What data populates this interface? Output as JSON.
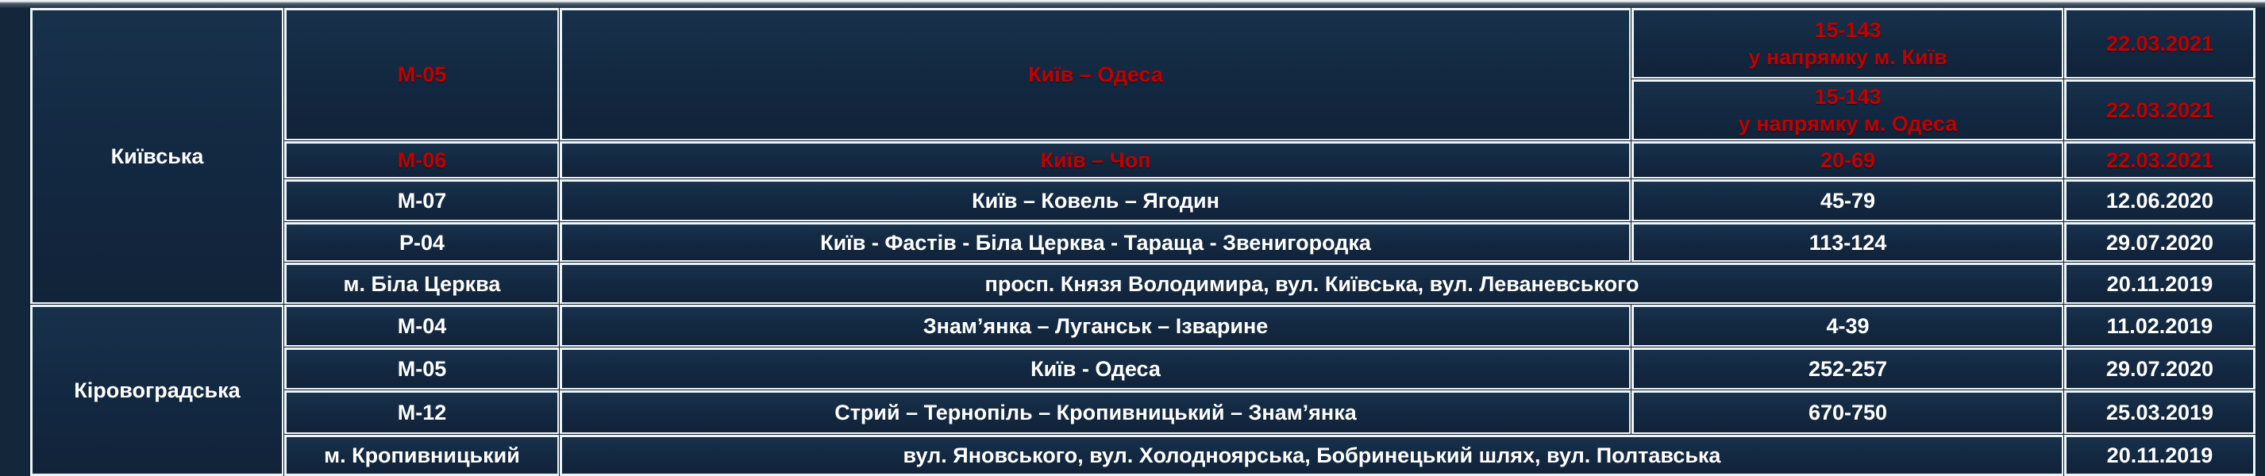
{
  "document": {
    "language": "uk",
    "description_keys": [
      "region",
      "road_code",
      "route",
      "km_range",
      "date"
    ]
  },
  "colors": {
    "cell_background": "#122740",
    "border_white": "#edf5fa",
    "text_white": "#ffffff",
    "highlight_red": "#c00000"
  },
  "table": {
    "groups": [
      {
        "region": "Київська",
        "rows": [
          {
            "code": "М-05",
            "route": "Київ – Одеса",
            "highlight": true,
            "directions": [
              {
                "km": "15-143\nу напрямку м. Київ",
                "date": "22.03.2021"
              },
              {
                "km": "15-143\nу напрямку м. Одеса",
                "date": "22.03.2021"
              }
            ]
          },
          {
            "code": "М-06",
            "route": "Київ – Чоп",
            "km": "20-69",
            "date": "22.03.2021",
            "highlight": true
          },
          {
            "code": "М-07",
            "route": "Київ – Ковель – Ягодин",
            "km": "45-79",
            "date": "12.06.2020",
            "highlight": false
          },
          {
            "code": "Р-04",
            "route": "Київ - Фастів - Біла Церква - Тараща - Звенигородка",
            "km": "113-124",
            "date": "29.07.2020",
            "highlight": false
          },
          {
            "code": "м. Біла Церква",
            "route": "просп. Князя Володимира, вул. Київська, вул. Леваневського",
            "km": "",
            "date": "20.11.2019",
            "highlight": false
          }
        ]
      },
      {
        "region": "Кіровоградська",
        "rows": [
          {
            "code": "М-04",
            "route": "Знам’янка – Луганськ – Ізварине",
            "km": "4-39",
            "date": "11.02.2019",
            "highlight": false
          },
          {
            "code": "М-05",
            "route": "Київ - Одеса",
            "km": "252-257",
            "date": "29.07.2020",
            "highlight": false
          },
          {
            "code": "М-12",
            "route": "Стрий – Тернопіль – Кропивницький – Знам’янка",
            "km": "670-750",
            "date": "25.03.2019",
            "highlight": false
          },
          {
            "code": "м. Кропивницький",
            "route": "вул. Яновського, вул. Холодноярська, Бобринецький шлях, вул. Полтавська",
            "km": "",
            "date": "20.11.2019",
            "highlight": false
          }
        ]
      }
    ]
  }
}
